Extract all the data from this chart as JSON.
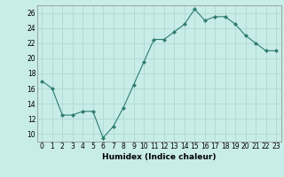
{
  "x": [
    0,
    1,
    2,
    3,
    4,
    5,
    6,
    7,
    8,
    9,
    10,
    11,
    12,
    13,
    14,
    15,
    16,
    17,
    18,
    19,
    20,
    21,
    22,
    23
  ],
  "y": [
    17.0,
    16.0,
    12.5,
    12.5,
    13.0,
    13.0,
    9.5,
    11.0,
    13.5,
    16.5,
    19.5,
    22.5,
    22.5,
    23.5,
    24.5,
    26.5,
    25.0,
    25.5,
    25.5,
    24.5,
    23.0,
    22.0,
    21.0,
    21.0
  ],
  "line_color": "#2e7d6e",
  "marker_color": "#2e7d6e",
  "bg_color": "#c8ece8",
  "grid_color": "#aad4ce",
  "xlabel": "Humidex (Indice chaleur)",
  "xlim": [
    -0.5,
    23.5
  ],
  "ylim": [
    9,
    27
  ],
  "yticks": [
    10,
    12,
    14,
    16,
    18,
    20,
    22,
    24,
    26
  ],
  "xticks": [
    0,
    1,
    2,
    3,
    4,
    5,
    6,
    7,
    8,
    9,
    10,
    11,
    12,
    13,
    14,
    15,
    16,
    17,
    18,
    19,
    20,
    21,
    22,
    23
  ],
  "label_fontsize": 6.5,
  "tick_fontsize": 5.5
}
